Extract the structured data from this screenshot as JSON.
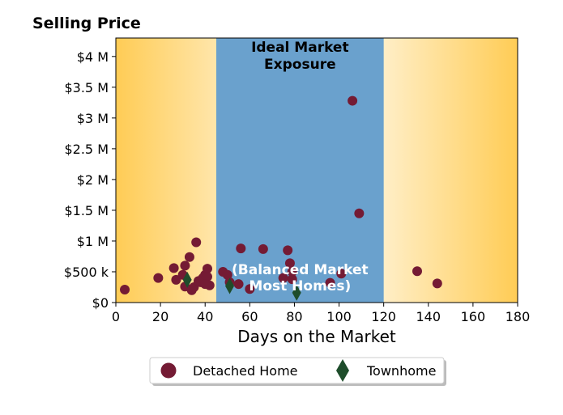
{
  "chart_data": {
    "type": "scatter",
    "title": "Selling Price",
    "xlabel": "Days on the Market",
    "ylabel": "",
    "xlim": [
      0,
      180
    ],
    "ylim": [
      0,
      4300000
    ],
    "x_ticks": [
      0,
      20,
      40,
      60,
      80,
      100,
      120,
      140,
      160,
      180
    ],
    "x_tick_labels": [
      "0",
      "20",
      "40",
      "60",
      "80",
      "100",
      "120",
      "140",
      "160",
      "180"
    ],
    "y_ticks": [
      0,
      500000,
      1000000,
      1500000,
      2000000,
      2500000,
      3000000,
      3500000,
      4000000
    ],
    "y_tick_labels": [
      "$0",
      "$500 k",
      "$1 M",
      "$1.5 M",
      "$2 M",
      "$2.5 M",
      "$3 M",
      "$3.5 M",
      "$4 M"
    ],
    "grid": false,
    "legend_position": "bottom-center",
    "bands": [
      {
        "x_from": 45,
        "x_to": 120,
        "color": "#6aa1cd",
        "top_label": [
          "Ideal Market",
          "Exposure"
        ],
        "bottom_label": [
          "(Balanced Market",
          "Most Homes)"
        ]
      }
    ],
    "background_gradient": {
      "edge_color": "#ffcc55",
      "center_color": "#ffffff"
    },
    "series": [
      {
        "name": "Detached Home",
        "marker": "circle",
        "color": "#741b34",
        "points": [
          [
            4,
            210000
          ],
          [
            19,
            400000
          ],
          [
            26,
            560000
          ],
          [
            27,
            370000
          ],
          [
            30,
            450000
          ],
          [
            31,
            600000
          ],
          [
            31,
            260000
          ],
          [
            33,
            740000
          ],
          [
            34,
            200000
          ],
          [
            35,
            250000
          ],
          [
            36,
            980000
          ],
          [
            37,
            350000
          ],
          [
            38,
            330000
          ],
          [
            39,
            400000
          ],
          [
            40,
            450000
          ],
          [
            41,
            550000
          ],
          [
            41,
            420000
          ],
          [
            42,
            280000
          ],
          [
            40,
            300000
          ],
          [
            48,
            500000
          ],
          [
            50,
            450000
          ],
          [
            51,
            330000
          ],
          [
            55,
            300000
          ],
          [
            56,
            880000
          ],
          [
            60,
            220000
          ],
          [
            66,
            870000
          ],
          [
            75,
            400000
          ],
          [
            77,
            850000
          ],
          [
            78,
            640000
          ],
          [
            79,
            500000
          ],
          [
            79,
            380000
          ],
          [
            96,
            320000
          ],
          [
            101,
            470000
          ],
          [
            106,
            3280000
          ],
          [
            109,
            1450000
          ],
          [
            135,
            510000
          ],
          [
            144,
            310000
          ]
        ]
      },
      {
        "name": "Townhome",
        "marker": "diamond",
        "color": "#1e4d2b",
        "points": [
          [
            32,
            370000
          ],
          [
            51,
            270000
          ],
          [
            81,
            160000
          ]
        ]
      }
    ]
  }
}
